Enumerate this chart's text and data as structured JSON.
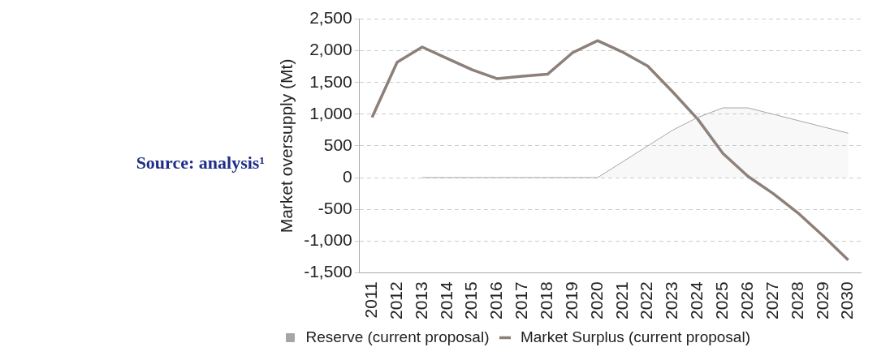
{
  "chart_data": {
    "type": "line",
    "ylabel": "Market oversupply (Mt)",
    "annotations": [
      "Source: analysis¹"
    ],
    "categories": [
      "2011",
      "2012",
      "2013",
      "2014",
      "2015",
      "2016",
      "2017",
      "2018",
      "2019",
      "2020",
      "2021",
      "2022",
      "2023",
      "2024",
      "2025",
      "2026",
      "2027",
      "2028",
      "2029",
      "2030"
    ],
    "series": [
      {
        "name": "Reserve (current proposal)",
        "type": "area",
        "color": "#a6a6a6",
        "values": [
          null,
          null,
          0,
          0,
          0,
          0,
          0,
          0,
          0,
          0,
          250,
          500,
          750,
          950,
          1100,
          1100,
          1000,
          900,
          800,
          700
        ]
      },
      {
        "name": "Market Surplus (current proposal)",
        "type": "line",
        "color": "#8c8079",
        "values": [
          950,
          1820,
          2060,
          1880,
          1700,
          1560,
          1600,
          1630,
          1970,
          2160,
          1980,
          1760,
          1350,
          920,
          380,
          20,
          -250,
          -560,
          -920,
          -1300
        ]
      }
    ],
    "ylim": [
      -1500,
      2500
    ],
    "yticks": [
      {
        "value": -1500,
        "label": "-1,500"
      },
      {
        "value": -1000,
        "label": "-1,000"
      },
      -500,
      0,
      500,
      {
        "value": 1000,
        "label": "1,000"
      },
      {
        "value": 1500,
        "label": "1,500"
      },
      {
        "value": 2000,
        "label": "2,000"
      },
      {
        "value": 2500,
        "label": "2,500"
      }
    ],
    "grid": "y",
    "legend": "bottom",
    "marker": "none"
  }
}
